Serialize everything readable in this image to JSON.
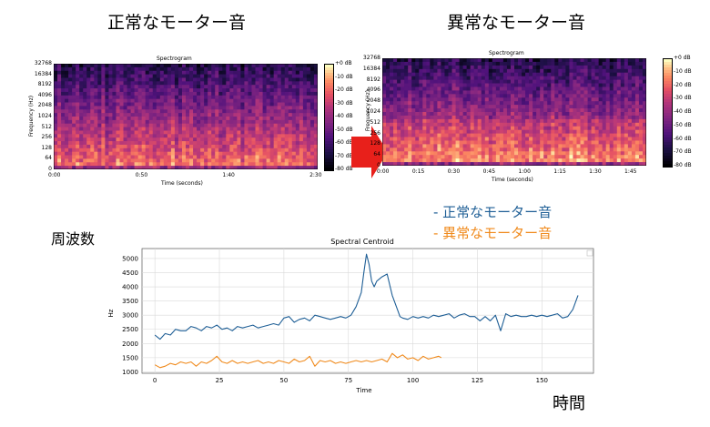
{
  "labels": {
    "normal_heading": "正常なモーター音",
    "abnormal_heading": "異常なモーター音",
    "y_side_label": "周波数",
    "x_side_label": "時間",
    "legend_normal": "- 正常なモーター音",
    "legend_abnormal": "- 異常なモーター音"
  },
  "colors": {
    "normal": "#1f5f96",
    "abnormal": "#f08a1c",
    "arrow": "#e8201b"
  },
  "spectrograms": [
    {
      "title": "Spectrogram",
      "ylabel": "Frequency (Hz)",
      "xlabel": "Time (seconds)",
      "yticks": [
        "32768",
        "16384",
        "8192",
        "4096",
        "2048",
        "1024",
        "512",
        "256",
        "128",
        "64",
        "0"
      ],
      "xticks": [
        "0:00",
        "0:50",
        "1:40",
        "2:30"
      ],
      "colorbar": [
        "+0 dB",
        "-10 dB",
        "-20 dB",
        "-30 dB",
        "-40 dB",
        "-50 dB",
        "-60 dB",
        "-70 dB",
        "-80 dB"
      ]
    },
    {
      "title": "Spectrogram",
      "ylabel": "Frequency (Hz)",
      "xlabel": "Time (seconds)",
      "yticks": [
        "32768",
        "16384",
        "8192",
        "4096",
        "2048",
        "1024",
        "512",
        "256",
        "128",
        "64",
        "0"
      ],
      "xticks": [
        "0:00",
        "0:15",
        "0:30",
        "0:45",
        "1:00",
        "1:15",
        "1:30",
        "1:45"
      ],
      "colorbar": [
        "+0 dB",
        "-10 dB",
        "-20 dB",
        "-30 dB",
        "-40 dB",
        "-50 dB",
        "-60 dB",
        "-70 dB",
        "-80 dB"
      ]
    }
  ],
  "chart_data": {
    "type": "line",
    "title": "Spectral Centroid",
    "xlabel": "Time",
    "ylabel": "Hz",
    "xlim": [
      -5,
      170
    ],
    "ylim": [
      950,
      5350
    ],
    "xticks": [
      0,
      25,
      50,
      75,
      100,
      125,
      150
    ],
    "yticks": [
      1000,
      1500,
      2000,
      2500,
      3000,
      3500,
      4000,
      4500,
      5000
    ],
    "grid": true,
    "series": [
      {
        "color": "#1f5f96",
        "x": [
          0,
          2,
          4,
          6,
          8,
          10,
          12,
          14,
          16,
          18,
          20,
          22,
          24,
          26,
          28,
          30,
          32,
          34,
          36,
          38,
          40,
          42,
          44,
          46,
          48,
          50,
          52,
          54,
          56,
          58,
          60,
          62,
          64,
          66,
          68,
          70,
          72,
          74,
          76,
          78,
          80,
          81,
          82,
          83,
          84,
          85,
          86,
          88,
          90,
          92,
          94,
          95,
          96,
          98,
          100,
          102,
          104,
          106,
          108,
          110,
          112,
          114,
          116,
          118,
          120,
          122,
          124,
          126,
          128,
          130,
          132,
          134,
          136,
          138,
          140,
          142,
          144,
          146,
          148,
          150,
          152,
          154,
          156,
          158,
          160,
          162,
          164
        ],
        "values": [
          2300,
          2150,
          2350,
          2300,
          2500,
          2450,
          2450,
          2600,
          2550,
          2450,
          2600,
          2550,
          2650,
          2500,
          2550,
          2450,
          2600,
          2550,
          2600,
          2650,
          2550,
          2600,
          2650,
          2700,
          2650,
          2900,
          2950,
          2750,
          2850,
          2900,
          2800,
          3000,
          2950,
          2900,
          2850,
          2900,
          2950,
          2900,
          3000,
          3300,
          3800,
          4500,
          5150,
          4800,
          4200,
          4000,
          4200,
          4350,
          4450,
          3700,
          3200,
          2950,
          2900,
          2850,
          2950,
          2900,
          2950,
          2900,
          3000,
          2950,
          3000,
          3050,
          2900,
          3000,
          3050,
          2950,
          2950,
          2800,
          2950,
          2800,
          3000,
          2450,
          3050,
          2950,
          3000,
          2950,
          2950,
          3000,
          2950,
          3000,
          2950,
          3000,
          3050,
          2900,
          2950,
          3200,
          3700
        ]
      },
      {
        "color": "#f08a1c",
        "x": [
          0,
          2,
          4,
          6,
          8,
          10,
          12,
          14,
          16,
          18,
          20,
          22,
          24,
          26,
          28,
          30,
          32,
          34,
          36,
          38,
          40,
          42,
          44,
          46,
          48,
          50,
          52,
          54,
          56,
          58,
          60,
          62,
          64,
          66,
          68,
          70,
          72,
          74,
          76,
          78,
          80,
          82,
          84,
          86,
          88,
          90,
          92,
          94,
          96,
          98,
          100,
          102,
          104,
          106,
          108,
          110,
          111
        ],
        "values": [
          1250,
          1150,
          1200,
          1300,
          1250,
          1350,
          1300,
          1350,
          1200,
          1350,
          1300,
          1400,
          1550,
          1350,
          1300,
          1400,
          1300,
          1350,
          1300,
          1350,
          1400,
          1300,
          1350,
          1300,
          1400,
          1350,
          1300,
          1450,
          1350,
          1400,
          1550,
          1200,
          1400,
          1350,
          1400,
          1300,
          1350,
          1300,
          1350,
          1400,
          1350,
          1400,
          1350,
          1400,
          1450,
          1350,
          1650,
          1500,
          1600,
          1450,
          1500,
          1400,
          1550,
          1450,
          1500,
          1550,
          1500
        ]
      }
    ]
  }
}
